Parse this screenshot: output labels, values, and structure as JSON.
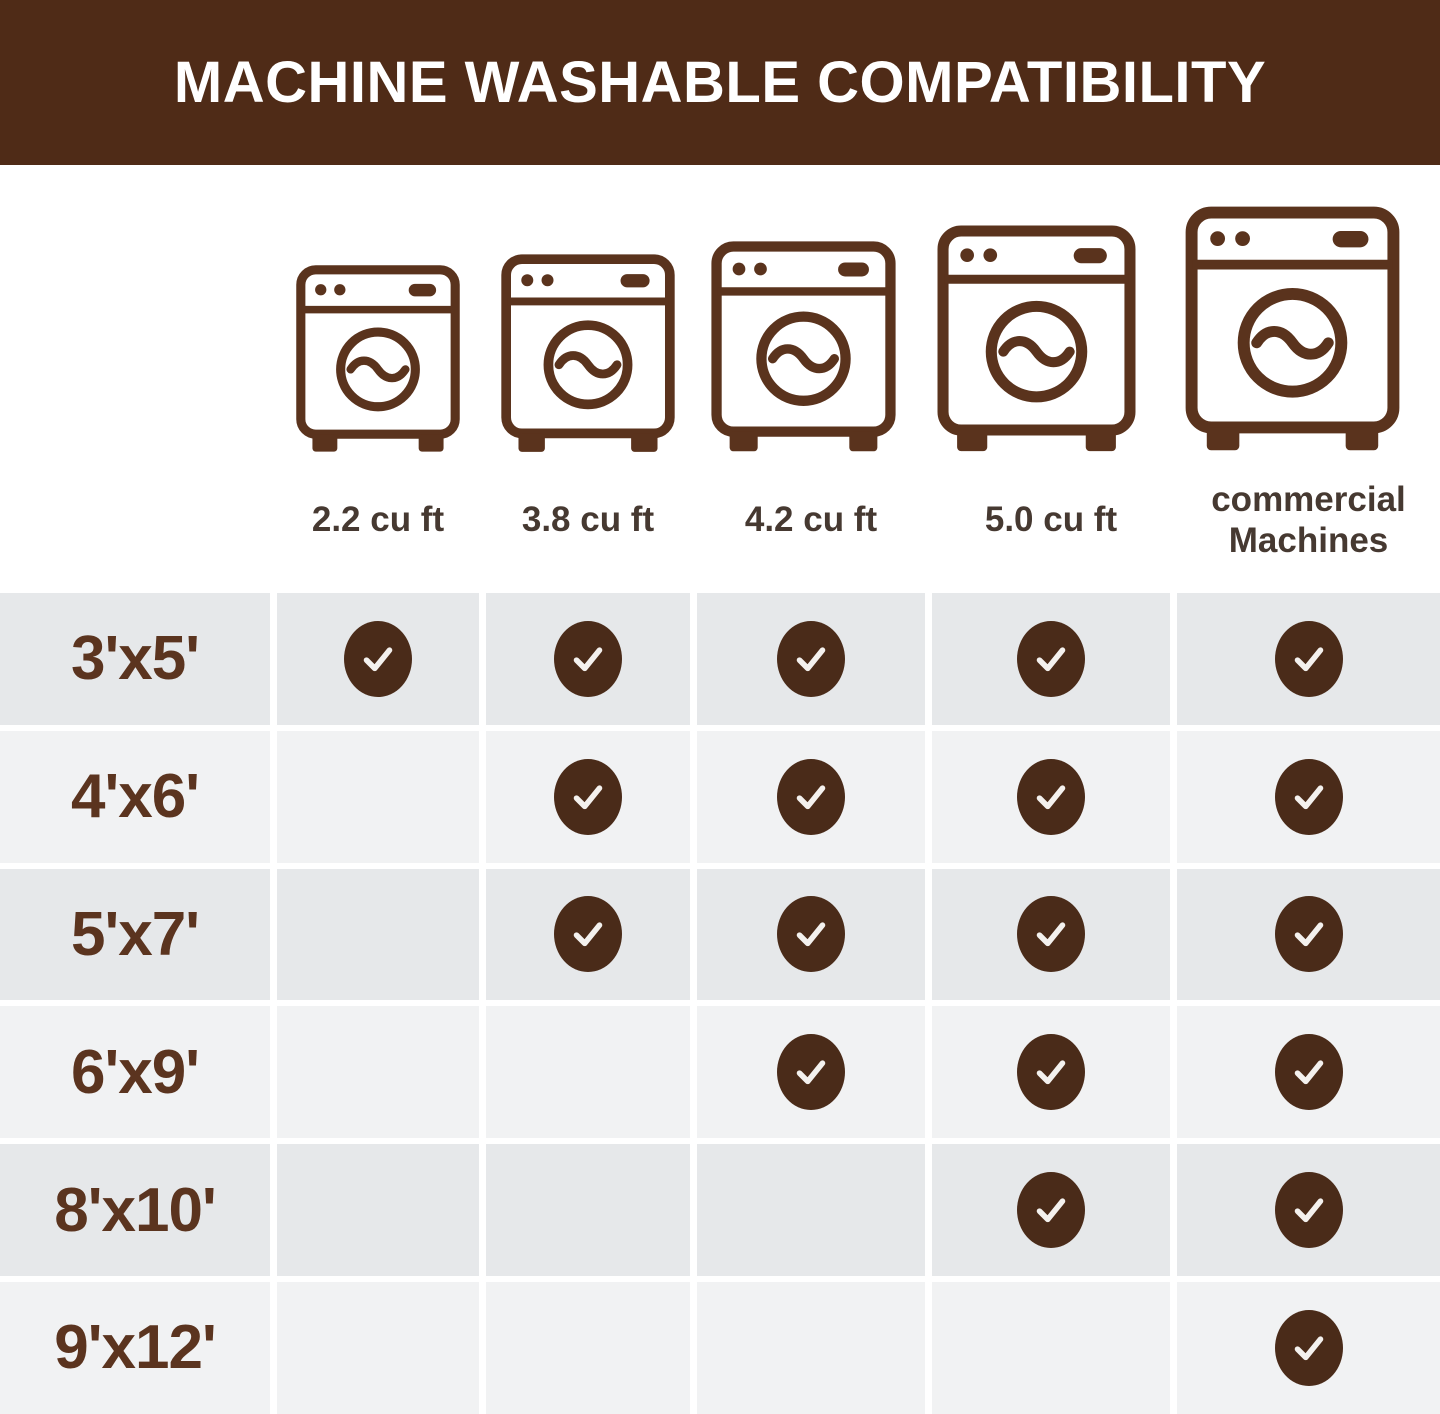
{
  "header": {
    "title": "MACHINE WASHABLE COMPATIBILITY"
  },
  "machines": {
    "items": [
      {
        "label": "2.2 cu ft",
        "icon": "washing-machine-icon"
      },
      {
        "label": "3.8 cu ft",
        "icon": "washing-machine-icon"
      },
      {
        "label": "4.2 cu ft",
        "icon": "washing-machine-icon"
      },
      {
        "label": "5.0 cu ft",
        "icon": "washing-machine-icon"
      },
      {
        "label": "commercial\nMachines",
        "icon": "washing-machine-icon"
      }
    ]
  },
  "chart_data": {
    "type": "table",
    "title": "MACHINE WASHABLE COMPATIBILITY",
    "columns": [
      "2.2 cu ft",
      "3.8 cu ft",
      "4.2 cu ft",
      "5.0 cu ft",
      "commercial Machines"
    ],
    "rows": [
      {
        "size": "3'x5'",
        "checks": [
          true,
          true,
          true,
          true,
          true
        ]
      },
      {
        "size": "4'x6'",
        "checks": [
          false,
          true,
          true,
          true,
          true
        ]
      },
      {
        "size": "5'x7'",
        "checks": [
          false,
          true,
          true,
          true,
          true
        ]
      },
      {
        "size": "6'x9'",
        "checks": [
          false,
          false,
          true,
          true,
          true
        ]
      },
      {
        "size": "8'x10'",
        "checks": [
          false,
          false,
          false,
          true,
          true
        ]
      },
      {
        "size": "9'x12'",
        "checks": [
          false,
          false,
          false,
          false,
          true
        ]
      }
    ],
    "legend_position": "none",
    "grid": "striped-rows"
  },
  "colors": {
    "header_bg": "#4f2b17",
    "title_text": "#ffffff",
    "icon_brown": "#5a331d",
    "size_label_brown": "#5b341f",
    "machine_label_text": "#463931",
    "check_circle": "#4a2b19",
    "check_mark": "#f4f1ee",
    "row_bg_odd": "#e6e8ea",
    "row_bg_even": "#f1f2f3",
    "background": "#ffffff"
  }
}
